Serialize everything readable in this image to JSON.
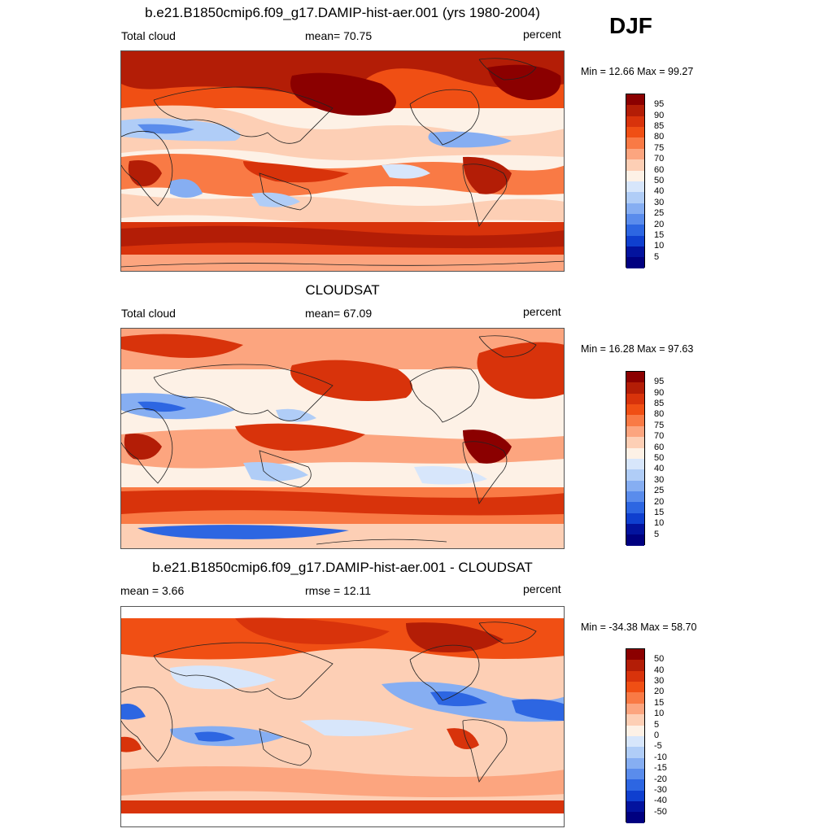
{
  "season": "DJF",
  "panels": [
    {
      "title": "b.e21.B1850cmip6.f09_g17.DAMIP-hist-aer.001 (yrs 1980-2004)",
      "left_label": "Total cloud",
      "center_label": "mean=  70.75",
      "right_label": "percent",
      "minmax": "Min =  12.66 Max =  99.27",
      "ticks": [
        "95",
        "90",
        "85",
        "80",
        "75",
        "70",
        "60",
        "50",
        "40",
        "30",
        "25",
        "20",
        "15",
        "10",
        "5"
      ]
    },
    {
      "title": "CLOUDSAT",
      "left_label": "Total cloud",
      "center_label": "mean=  67.09",
      "right_label": "percent",
      "minmax": "Min =  16.28 Max =  97.63",
      "ticks": [
        "95",
        "90",
        "85",
        "80",
        "75",
        "70",
        "60",
        "50",
        "40",
        "30",
        "25",
        "20",
        "15",
        "10",
        "5"
      ]
    },
    {
      "title": "b.e21.B1850cmip6.f09_g17.DAMIP-hist-aer.001 - CLOUDSAT",
      "left_label": "mean =   3.66",
      "center_label": "rmse =  12.11",
      "right_label": "percent",
      "minmax": "Min = -34.38 Max =  58.70",
      "ticks": [
        "50",
        "40",
        "30",
        "20",
        "15",
        "10",
        "5",
        "0",
        "-5",
        "-10",
        "-15",
        "-20",
        "-30",
        "-40",
        "-50"
      ]
    }
  ],
  "colors": {
    "colorbar": [
      "#8b0000",
      "#b31d06",
      "#d8330b",
      "#f04f14",
      "#f97a45",
      "#fca57f",
      "#fdcfb5",
      "#fdf1e6",
      "#d7e6fb",
      "#b0cdf7",
      "#86aef2",
      "#5a8cec",
      "#2d66e2",
      "#0f3fcf",
      "#03139e",
      "#000080"
    ],
    "coast": "#222222"
  }
}
